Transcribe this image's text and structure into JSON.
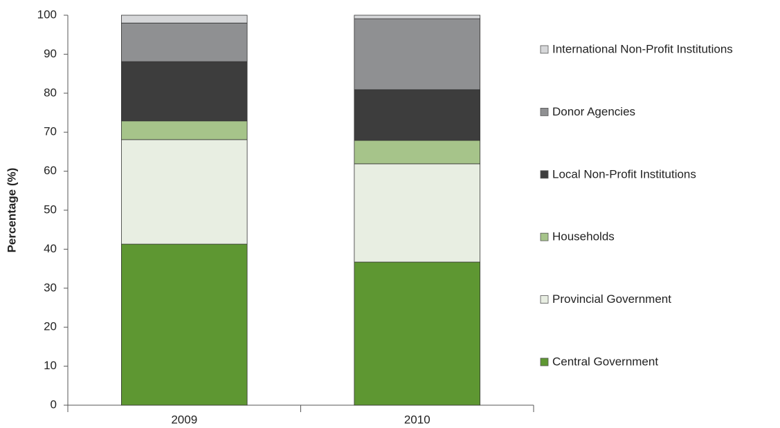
{
  "chart_data": {
    "type": "stacked-bar",
    "y_label": "Percentage (%)",
    "categories": [
      "2009",
      "2010"
    ],
    "series": [
      {
        "name": "Central Government",
        "color": "#5e9732",
        "values": [
          41.3,
          36.7
        ]
      },
      {
        "name": "Provincial Government",
        "color": "#e8eee2",
        "values": [
          26.8,
          25.2
        ]
      },
      {
        "name": "Households",
        "color": "#a6c48a",
        "values": [
          4.8,
          6.0
        ]
      },
      {
        "name": "Local Non-Profit Institutions",
        "color": "#3d3d3d",
        "values": [
          15.2,
          13.0
        ]
      },
      {
        "name": "Donor Agencies",
        "color": "#8f9092",
        "values": [
          9.9,
          18.2
        ]
      },
      {
        "name": "International Non-Profit Institutions",
        "color": "#d6d7d9",
        "values": [
          2.0,
          0.9
        ]
      }
    ],
    "ylim": [
      0,
      100
    ],
    "yticks": [
      0,
      10,
      20,
      30,
      40,
      50,
      60,
      70,
      80,
      90,
      100
    ],
    "legend": "right"
  }
}
